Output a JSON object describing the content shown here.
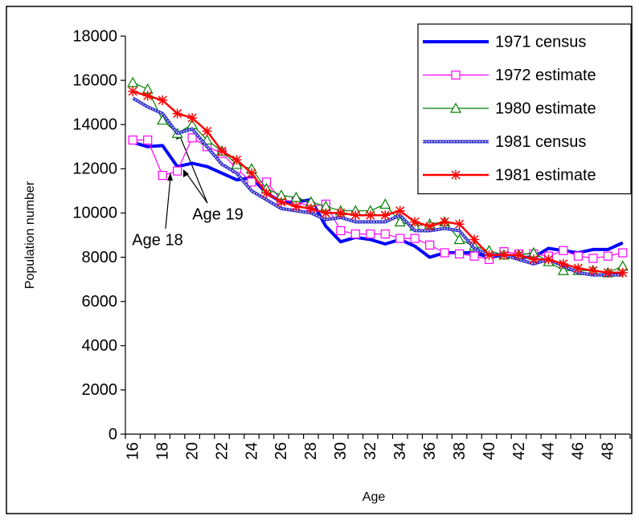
{
  "chart_data": {
    "type": "line",
    "y_label": "Population number",
    "x_label": "Age",
    "categories": [
      16,
      null,
      18,
      null,
      20,
      null,
      22,
      null,
      24,
      null,
      26,
      null,
      28,
      null,
      30,
      null,
      32,
      null,
      34,
      null,
      36,
      null,
      38,
      null,
      40,
      null,
      42,
      null,
      44,
      null,
      46,
      null,
      48,
      null
    ],
    "ylim": [
      0,
      18000
    ],
    "yticks": [
      0,
      2000,
      4000,
      6000,
      8000,
      10000,
      12000,
      14000,
      16000,
      18000
    ],
    "series": [
      {
        "name": "1971 census",
        "color": "#0000ff",
        "style": "thick",
        "marker": "none",
        "values": [
          13200,
          13000,
          13050,
          12100,
          12250,
          12100,
          11800,
          11500,
          11600,
          10900,
          10500,
          10500,
          10600,
          9400,
          8700,
          8900,
          8800,
          8600,
          8800,
          8500,
          8000,
          8200,
          8200,
          8200,
          8000,
          8100,
          8000,
          8000,
          8400,
          8300,
          8200,
          8350,
          8350,
          8650
        ]
      },
      {
        "name": "1972 estimate",
        "color": "#ff00ff",
        "style": "thin",
        "marker": "square",
        "values": [
          13300,
          13300,
          11700,
          11900,
          13400,
          13000,
          12700,
          12000,
          11400,
          11400,
          10600,
          10500,
          10300,
          10400,
          9200,
          9050,
          9050,
          9050,
          8850,
          8850,
          8550,
          8200,
          8150,
          8050,
          7900,
          8250,
          8150,
          8150,
          8050,
          8300,
          8050,
          7950,
          8050,
          8200
        ]
      },
      {
        "name": "1980 estimate",
        "color": "#008000",
        "style": "thin",
        "marker": "triangle",
        "values": [
          15900,
          15600,
          14200,
          13600,
          14000,
          13300,
          12800,
          12200,
          12000,
          11100,
          10800,
          10700,
          10500,
          10300,
          10100,
          10100,
          10100,
          10400,
          9600,
          9400,
          9500,
          9600,
          8800,
          8500,
          8300,
          8100,
          8100,
          8200,
          7800,
          7400,
          7400,
          7400,
          7300,
          7600
        ]
      },
      {
        "name": "1981 census",
        "color": "#3333cc",
        "style": "textured",
        "marker": "none",
        "values": [
          15200,
          14800,
          14500,
          13600,
          13800,
          13000,
          12200,
          11800,
          11000,
          10600,
          10200,
          10100,
          10000,
          9700,
          9800,
          9600,
          9600,
          9600,
          9900,
          9200,
          9200,
          9300,
          9200,
          8400,
          8100,
          8100,
          7900,
          7700,
          7900,
          7600,
          7300,
          7200,
          7200,
          7200
        ]
      },
      {
        "name": "1981 estimate",
        "color": "#ff0000",
        "style": "medium",
        "marker": "star",
        "values": [
          15500,
          15300,
          15100,
          14500,
          14300,
          13700,
          12800,
          12400,
          11800,
          10900,
          10500,
          10300,
          10200,
          10000,
          10000,
          9900,
          9900,
          9900,
          10100,
          9600,
          9400,
          9600,
          9500,
          8800,
          8100,
          8100,
          8100,
          7900,
          7900,
          7700,
          7500,
          7400,
          7300,
          7300
        ]
      }
    ],
    "annotations": [
      "Age 18",
      "Age 19"
    ],
    "legend": "top-right"
  }
}
